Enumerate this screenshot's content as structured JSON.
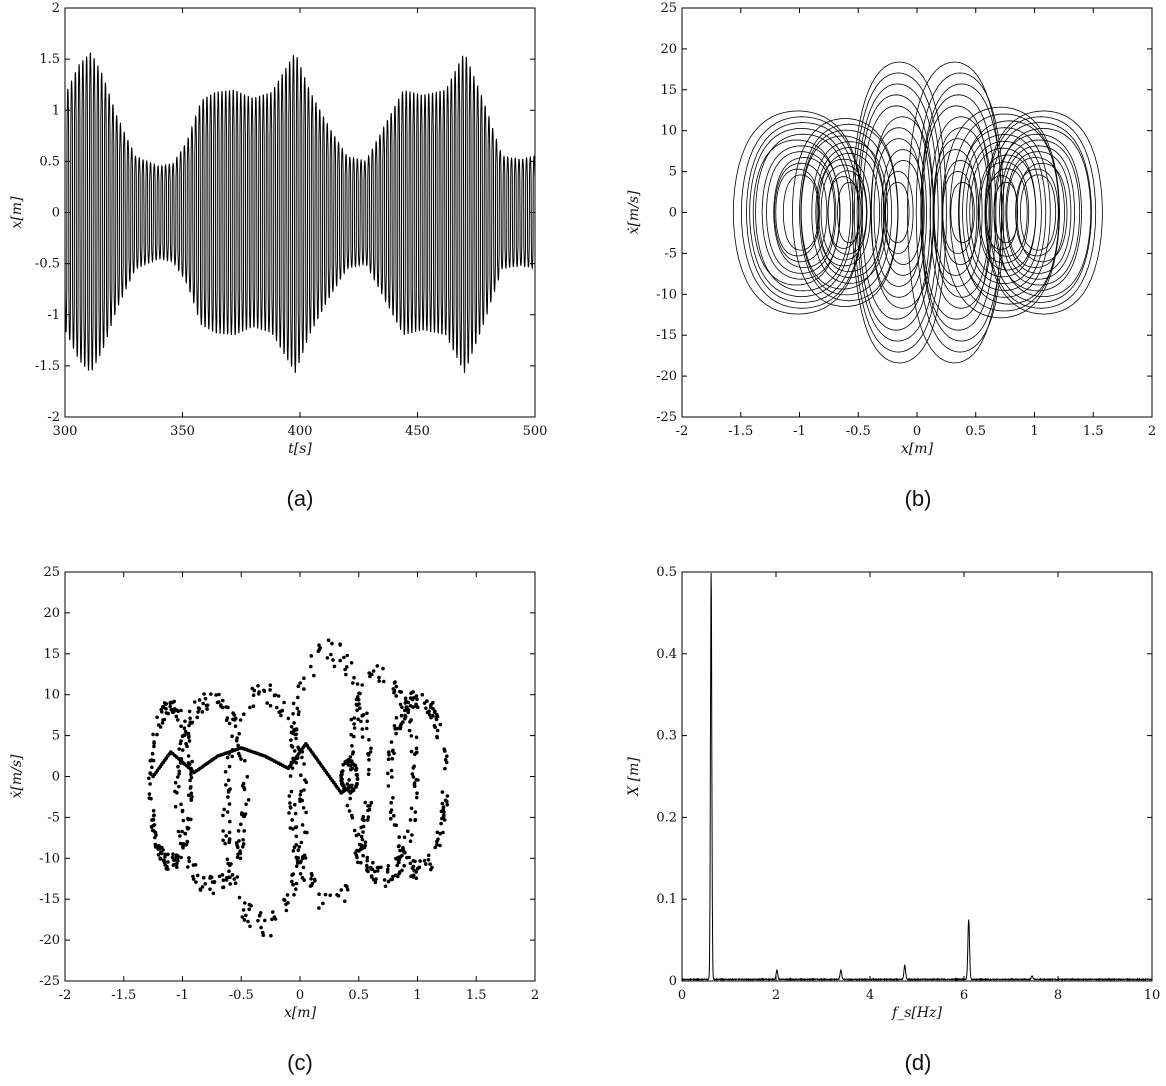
{
  "chart_data": [
    {
      "id": "a",
      "type": "line",
      "caption": "(a)",
      "xlabel": "t[s]",
      "ylabel": "x[m]",
      "xlim": [
        300,
        500
      ],
      "ylim": [
        -2,
        2
      ],
      "xticks": [
        300,
        350,
        400,
        450,
        500
      ],
      "yticks": [
        -2,
        -1.5,
        -1,
        -0.5,
        0,
        0.5,
        1,
        1.5,
        2
      ],
      "signal": {
        "description_free": true,
        "oscillation_period_s": 1.6,
        "envelope_points": [
          [
            300,
            1.15
          ],
          [
            306,
            1.45
          ],
          [
            311,
            1.57
          ],
          [
            316,
            1.35
          ],
          [
            322,
            0.95
          ],
          [
            330,
            0.55
          ],
          [
            340,
            0.45
          ],
          [
            346,
            0.48
          ],
          [
            352,
            0.7
          ],
          [
            358,
            1.1
          ],
          [
            364,
            1.18
          ],
          [
            372,
            1.2
          ],
          [
            380,
            1.12
          ],
          [
            388,
            1.18
          ],
          [
            398,
            1.57
          ],
          [
            404,
            1.2
          ],
          [
            412,
            0.85
          ],
          [
            420,
            0.55
          ],
          [
            428,
            0.5
          ],
          [
            436,
            0.85
          ],
          [
            444,
            1.2
          ],
          [
            452,
            1.15
          ],
          [
            462,
            1.2
          ],
          [
            470,
            1.57
          ],
          [
            478,
            1.1
          ],
          [
            486,
            0.55
          ],
          [
            494,
            0.52
          ],
          [
            500,
            0.55
          ]
        ]
      }
    },
    {
      "id": "b",
      "type": "line",
      "caption": "(b)",
      "xlabel": "x[m]",
      "ylabel": "ẋ[m/s]",
      "xlim": [
        -2,
        2
      ],
      "ylim": [
        -25,
        25
      ],
      "xticks": [
        -2,
        -1.5,
        -1,
        -0.5,
        0,
        0.5,
        1,
        1.5,
        2
      ],
      "yticks": [
        -25,
        -20,
        -15,
        -10,
        -5,
        0,
        5,
        10,
        15,
        20,
        25
      ],
      "orbits": [
        {
          "cx": -1.0,
          "rx": [
            0.15,
            0.55
          ],
          "ry": [
            5,
            13.5
          ]
        },
        {
          "cx": -0.6,
          "rx": [
            0.1,
            0.45
          ],
          "ry": [
            4,
            12.5
          ]
        },
        {
          "cx": -0.15,
          "rx": [
            0.1,
            0.4
          ],
          "ry": [
            4,
            20
          ]
        },
        {
          "cx": 0.35,
          "rx": [
            0.1,
            0.4
          ],
          "ry": [
            4,
            20
          ]
        },
        {
          "cx": 0.75,
          "rx": [
            0.1,
            0.5
          ],
          "ry": [
            4,
            14
          ]
        },
        {
          "cx": 1.05,
          "rx": [
            0.15,
            0.5
          ],
          "ry": [
            5,
            13.5
          ]
        }
      ]
    },
    {
      "id": "c",
      "type": "scatter",
      "caption": "(c)",
      "xlabel": "x[m]",
      "ylabel": "ẋ[m/s]",
      "xlim": [
        -2,
        2
      ],
      "ylim": [
        -25,
        25
      ],
      "xticks": [
        -2,
        -1.5,
        -1,
        -0.5,
        0,
        0.5,
        1,
        1.5,
        2
      ],
      "yticks": [
        -25,
        -20,
        -15,
        -10,
        -5,
        0,
        5,
        10,
        15,
        20,
        25
      ],
      "clusters": [
        {
          "cx": -1.1,
          "cy": -1,
          "rx": 0.18,
          "ry": 10
        },
        {
          "cx": -0.75,
          "cy": -2,
          "rx": 0.3,
          "ry": 12
        },
        {
          "cx": -0.3,
          "cy": -4,
          "rx": 0.35,
          "ry": 15
        },
        {
          "cx": 0.25,
          "cy": 0,
          "rx": 0.35,
          "ry": 16
        },
        {
          "cx": 0.7,
          "cy": 0,
          "rx": 0.3,
          "ry": 13
        },
        {
          "cx": 1.0,
          "cy": -1,
          "rx": 0.25,
          "ry": 11
        },
        {
          "cx": 0.42,
          "cy": 0,
          "rx": 0.07,
          "ry": 2
        }
      ],
      "curve": [
        [
          -1.25,
          0
        ],
        [
          -1.1,
          3
        ],
        [
          -0.9,
          0.5
        ],
        [
          -0.7,
          2.5
        ],
        [
          -0.5,
          3.5
        ],
        [
          -0.3,
          2.5
        ],
        [
          -0.1,
          1
        ],
        [
          0.05,
          4
        ],
        [
          0.2,
          1
        ],
        [
          0.35,
          -2
        ],
        [
          0.45,
          -1
        ]
      ]
    },
    {
      "id": "d",
      "type": "line",
      "caption": "(d)",
      "xlabel": "f_s[Hz]",
      "ylabel": "X [m]",
      "xlim": [
        0,
        10
      ],
      "ylim": [
        0,
        0.5
      ],
      "xticks": [
        0,
        2,
        4,
        6,
        8,
        10
      ],
      "yticks": [
        0,
        0.1,
        0.2,
        0.3,
        0.4,
        0.5
      ],
      "peaks": [
        {
          "f": 0.62,
          "amp": 0.497
        },
        {
          "f": 2.02,
          "amp": 0.011
        },
        {
          "f": 3.38,
          "amp": 0.011
        },
        {
          "f": 4.74,
          "amp": 0.017
        },
        {
          "f": 6.1,
          "amp": 0.073
        },
        {
          "f": 7.45,
          "amp": 0.004
        }
      ]
    }
  ]
}
